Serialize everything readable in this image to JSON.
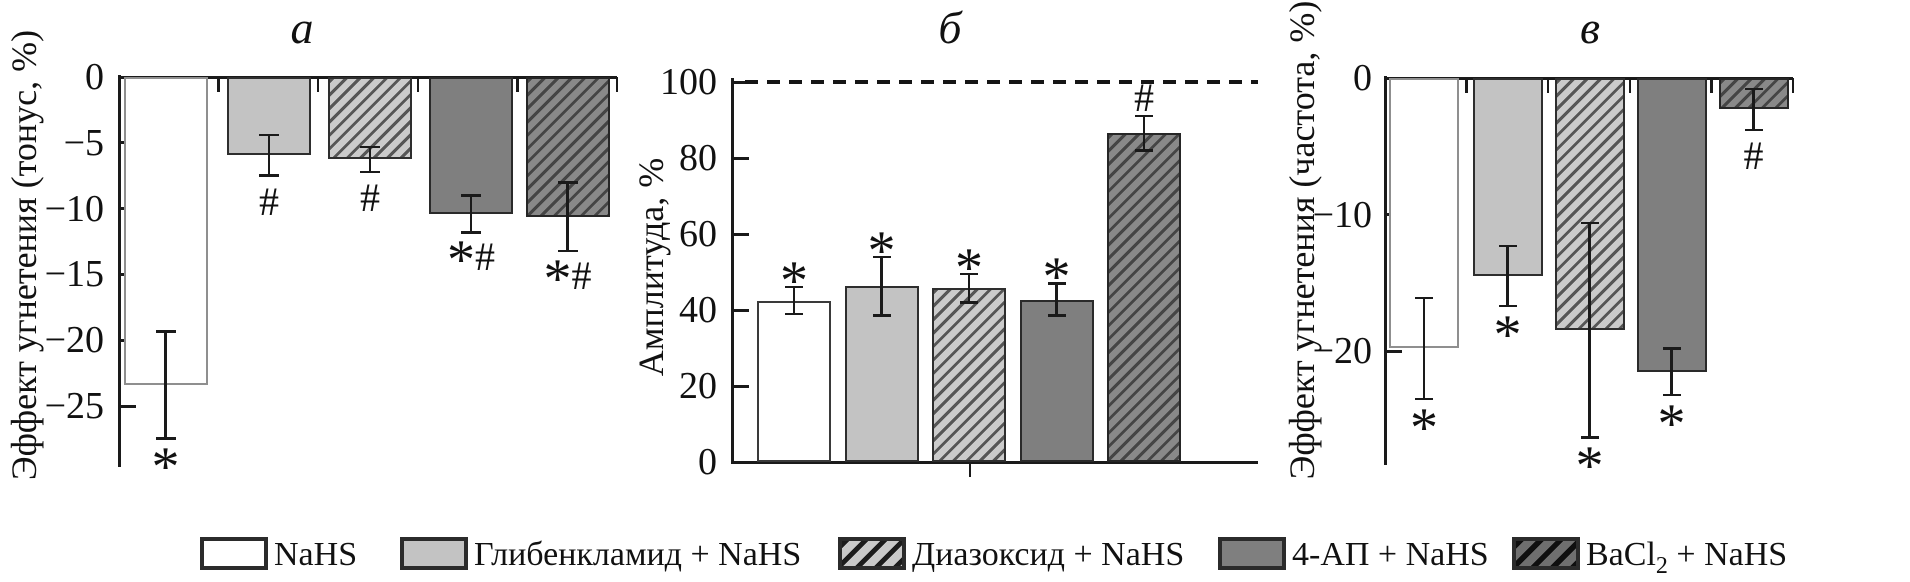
{
  "figure": {
    "background": "#ffffff"
  },
  "chart_data": [
    {
      "type": "bar",
      "panel_label": "а",
      "ylabel": "Эффект угнетения (тонус, %)",
      "categories": [
        "NaHS",
        "Глибенкламид + NaHS",
        "Диазоксид + NaHS",
        "4-АП + NaHS",
        "BaCl₂ + NaHS"
      ],
      "values": [
        -23.4,
        -5.95,
        -6.25,
        -10.4,
        -10.6
      ],
      "errors": [
        4.05,
        1.55,
        0.95,
        1.4,
        2.6
      ],
      "annotations": [
        "*",
        "#",
        "#",
        "*#",
        "*#"
      ],
      "ylim": [
        -29.5,
        0
      ],
      "yticks": [
        0,
        -5,
        -10,
        -15,
        -20,
        -25
      ]
    },
    {
      "type": "bar",
      "panel_label": "б",
      "ylabel": "Амплитуда, %",
      "categories": [
        "NaHS",
        "Глибенкламид + NaHS",
        "Диазоксид + NaHS",
        "4-АП + NaHS",
        "BaCl₂ + NaHS"
      ],
      "values": [
        42.5,
        46.25,
        45.75,
        42.75,
        86.5
      ],
      "errors": [
        3.5,
        7.75,
        3.75,
        4.25,
        4.5
      ],
      "annotations": [
        "*",
        "*",
        "*",
        "*",
        "#"
      ],
      "ylim": [
        0,
        100
      ],
      "yticks": [
        0,
        20,
        40,
        60,
        80,
        100
      ],
      "dashed_reference_line": 100
    },
    {
      "type": "bar",
      "panel_label": "в",
      "ylabel": "Эффект угнетения (частота, %)",
      "categories": [
        "NaHS",
        "Глибенкламид + NaHS",
        "Диазоксид + NaHS",
        "4-АП + NaHS",
        "BaCl₂ + NaHS"
      ],
      "values": [
        -19.8,
        -14.5,
        -18.45,
        -21.5,
        -2.3
      ],
      "errors": [
        3.7,
        2.2,
        7.85,
        1.7,
        1.5
      ],
      "annotations": [
        "*",
        "*",
        "*",
        "*",
        "#"
      ],
      "ylim": [
        -28.3,
        0
      ],
      "yticks": [
        0,
        -10,
        -20
      ]
    }
  ],
  "legend": {
    "items": [
      {
        "label": "NaHS",
        "pattern": "white"
      },
      {
        "label": "Глибенкламид + NaHS",
        "pattern": "light-gray"
      },
      {
        "label": "Диазоксид + NaHS",
        "pattern": "light-hatch"
      },
      {
        "label": "4-АП + NaHS",
        "pattern": "dark-gray"
      },
      {
        "label": "BaCl₂ + NaHS",
        "label_parts": [
          "BaCl",
          "2",
          " + NaHS"
        ],
        "pattern": "dark-hatch"
      }
    ]
  },
  "colors": {
    "light_gray": "#c3c3c3",
    "dark_gray": "#7f7f7f",
    "hatch_light_bg": "#cbcbcb",
    "hatch_dark_bg": "#898989",
    "stripe": "#454545",
    "axis": "#1a1a1a"
  }
}
